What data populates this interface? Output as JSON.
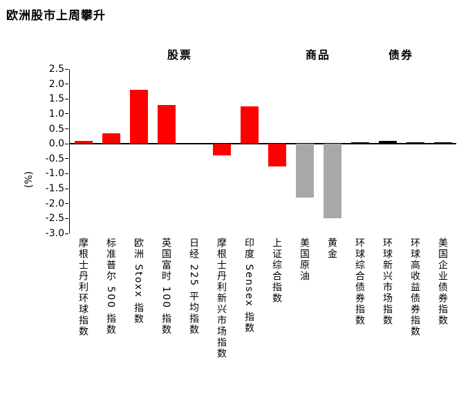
{
  "chart_data": {
    "type": "bar",
    "title": "欧洲股市上周攀升",
    "ylabel": "(%)",
    "ylim": [
      -3.0,
      2.5
    ],
    "yticks": [
      "2.5",
      "2.0",
      "1.5",
      "1.0",
      "0.5",
      "0.0",
      "-0.5",
      "-1.0",
      "-1.5",
      "-2.0",
      "-2.5",
      "-3.0"
    ],
    "grid": false,
    "legend": "none",
    "groups": [
      {
        "label": "股票",
        "span": [
          0,
          7
        ]
      },
      {
        "label": "商品",
        "span": [
          8,
          9
        ]
      },
      {
        "label": "债券",
        "span": [
          10,
          13
        ]
      }
    ],
    "categories": [
      "摩根士丹利环球指数",
      "标准普尔 500 指数",
      "欧洲 Stoxx 指数",
      "英国富时 100 指数",
      "日经 225 平均指数",
      "摩根士丹利新兴市场指数",
      "印度 Sensex 指数",
      "上证综合指数",
      "美国原油",
      "黄金",
      "环球综合债券指数",
      "环球新兴市场指数",
      "环球高收益债券指数",
      "美国企业债券指数"
    ],
    "values": [
      0.1,
      0.35,
      1.8,
      1.3,
      0.0,
      -0.4,
      1.25,
      -0.75,
      -1.8,
      -2.5,
      0.05,
      0.1,
      0.06,
      0.04
    ],
    "colors": [
      "red",
      "red",
      "red",
      "red",
      "red",
      "red",
      "red",
      "red",
      "gray",
      "gray",
      "black",
      "black",
      "black",
      "black"
    ],
    "palette": {
      "red": "#ff0000",
      "gray": "#a8a8a8",
      "black": "#000000"
    }
  }
}
